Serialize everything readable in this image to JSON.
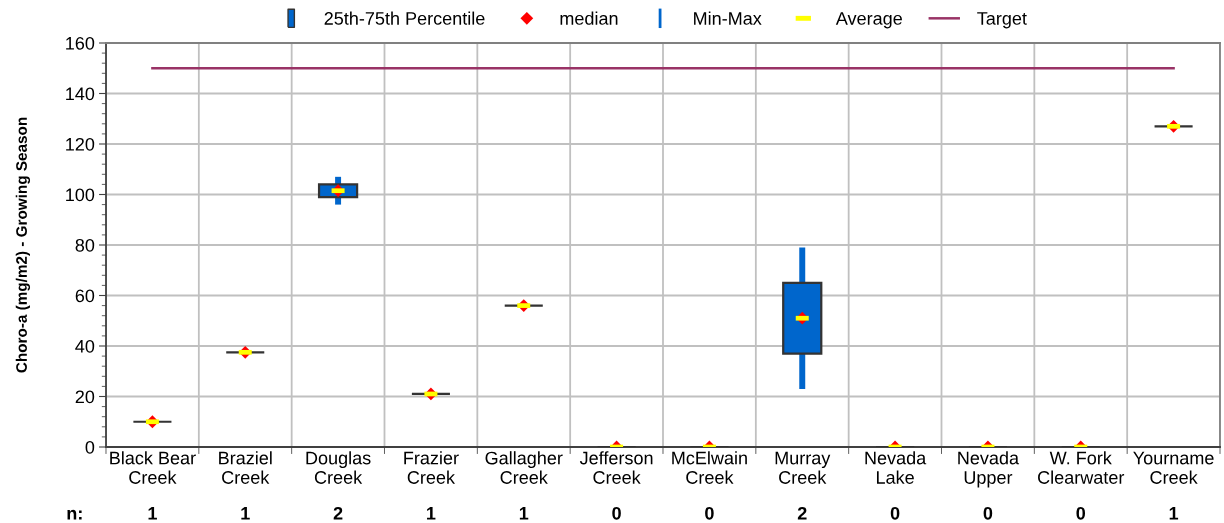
{
  "chart_data": {
    "type": "box",
    "ylabel": "Choro-a (mg/m2) - Growing Season",
    "categories": [
      "Black Bear\nCreek",
      "Braziel\nCreek",
      "Douglas\nCreek",
      "Frazier\nCreek",
      "Gallagher\nCreek",
      "Jefferson\nCreek",
      "McElwain\nCreek",
      "Murray\nCreek",
      "Nevada\nLake",
      "Nevada\nUpper",
      "W. Fork\nClearwater",
      "Yourname\nCreek"
    ],
    "series": [
      {
        "name": "25th-75th Percentile",
        "color": "#0066cc",
        "colors": [
          "#333333",
          "#333333",
          "#0066cc",
          "#333333",
          "#333333",
          "#333333",
          "#333333",
          "#0066cc",
          "#333333",
          "#333333",
          "#333333",
          "#333333"
        ],
        "boxes": [
          {
            "low": 10,
            "q1": 10,
            "median": 10,
            "q3": 10,
            "high": 10,
            "mean": 10
          },
          {
            "low": 37.5,
            "q1": 37.5,
            "median": 37.5,
            "q3": 37.5,
            "high": 37.5,
            "mean": 37.5
          },
          {
            "low": 96,
            "q1": 99,
            "median": 101.5,
            "q3": 104,
            "high": 107,
            "mean": 101.5
          },
          {
            "low": 21,
            "q1": 21,
            "median": 21,
            "q3": 21,
            "high": 21,
            "mean": 21
          },
          {
            "low": 56,
            "q1": 56,
            "median": 56,
            "q3": 56,
            "high": 56,
            "mean": 56
          },
          {
            "low": 0,
            "q1": 0,
            "median": 0,
            "q3": 0,
            "high": 0,
            "mean": 0
          },
          {
            "low": 0,
            "q1": 0,
            "median": 0,
            "q3": 0,
            "high": 0,
            "mean": 0
          },
          {
            "low": 23,
            "q1": 37,
            "median": 51,
            "q3": 65,
            "high": 79,
            "mean": 51
          },
          {
            "low": 0,
            "q1": 0,
            "median": 0,
            "q3": 0,
            "high": 0,
            "mean": 0
          },
          {
            "low": 0,
            "q1": 0,
            "median": 0,
            "q3": 0,
            "high": 0,
            "mean": 0
          },
          {
            "low": 0,
            "q1": 0,
            "median": 0,
            "q3": 0,
            "high": 0,
            "mean": 0
          },
          {
            "low": 127,
            "q1": 127,
            "median": 127,
            "q3": 127,
            "high": 127,
            "mean": 127
          }
        ]
      },
      {
        "name": "median",
        "type": "scatter",
        "marker": "diamond",
        "color": "#ff0000",
        "values": [
          null,
          null,
          null,
          null,
          null,
          null,
          null,
          null,
          null,
          null,
          null,
          null
        ]
      },
      {
        "name": "Min-Max",
        "type": "scatter",
        "color": "#0066cc",
        "values": [
          null,
          null,
          null,
          null,
          null,
          null,
          null,
          null,
          null,
          null,
          null,
          null
        ]
      },
      {
        "name": "Average",
        "type": "scatter",
        "color": "#ffff00",
        "values": [
          null,
          null,
          null,
          null,
          null,
          null,
          null,
          null,
          null,
          null,
          null,
          null
        ]
      },
      {
        "name": "Target",
        "type": "line",
        "color": "#993366",
        "values": [
          150,
          150,
          150,
          150,
          150,
          150,
          150,
          150,
          150,
          150,
          150,
          150
        ]
      }
    ],
    "ylim": [
      0,
      160
    ],
    "yticks": [
      0,
      {
        "value": 4,
        "label": null
      },
      {
        "value": 8,
        "label": null
      },
      {
        "value": 12,
        "label": null
      },
      {
        "value": 16,
        "label": null
      },
      20,
      {
        "value": 24,
        "label": null
      },
      {
        "value": 28,
        "label": null
      },
      {
        "value": 32,
        "label": null
      },
      {
        "value": 36,
        "label": null
      },
      40,
      {
        "value": 44,
        "label": null
      },
      {
        "value": 48,
        "label": null
      },
      {
        "value": 52,
        "label": null
      },
      {
        "value": 56,
        "label": null
      },
      60,
      {
        "value": 64,
        "label": null
      },
      {
        "value": 68,
        "label": null
      },
      {
        "value": 72,
        "label": null
      },
      {
        "value": 76,
        "label": null
      },
      80,
      {
        "value": 84,
        "label": null
      },
      {
        "value": 88,
        "label": null
      },
      {
        "value": 92,
        "label": null
      },
      {
        "value": 96,
        "label": null
      },
      100,
      {
        "value": 104,
        "label": null
      },
      {
        "value": 108,
        "label": null
      },
      {
        "value": 112,
        "label": null
      },
      {
        "value": 116,
        "label": null
      },
      120,
      {
        "value": 124,
        "label": null
      },
      {
        "value": 128,
        "label": null
      },
      {
        "value": 132,
        "label": null
      },
      {
        "value": 136,
        "label": null
      },
      140,
      {
        "value": 144,
        "label": null
      },
      {
        "value": 148,
        "label": null
      },
      {
        "value": 152,
        "label": null
      },
      {
        "value": 156,
        "label": null
      },
      160
    ],
    "grid": true,
    "legend": "top",
    "annotations": [
      "n:",
      "1",
      "1",
      "2",
      "1",
      "1",
      "0",
      "0",
      "2",
      "0",
      "0",
      "0",
      "1"
    ]
  }
}
